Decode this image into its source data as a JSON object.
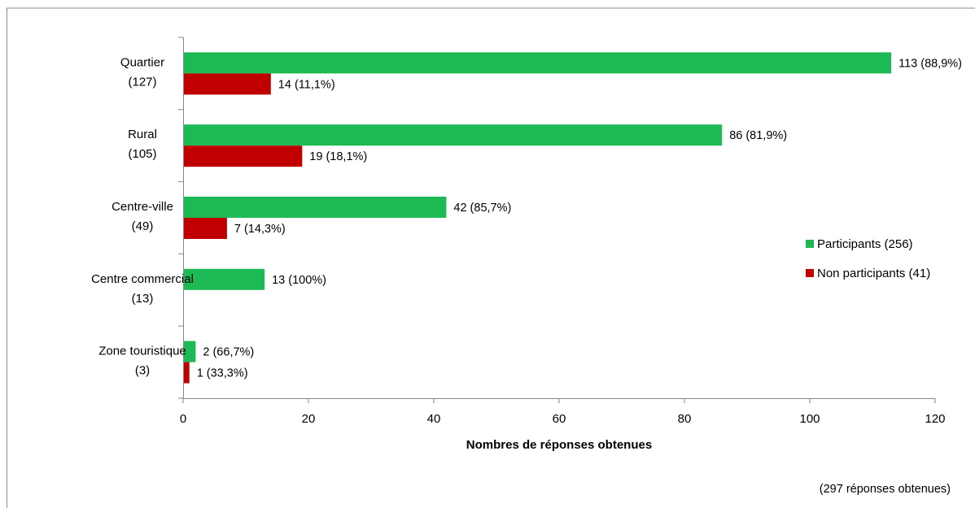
{
  "chart_data": {
    "type": "bar",
    "orientation": "horizontal",
    "categories": [
      "Quartier\n(127)",
      "Rural\n(105)",
      "Centre-ville\n(49)",
      "Centre commercial\n(13)",
      "Zone touristique\n(3)"
    ],
    "series": [
      {
        "name": "Participants (256)",
        "color": "#1db954",
        "values": [
          113,
          86,
          42,
          13,
          2
        ],
        "labels": [
          "113 (88,9%)",
          "86 (81,9%)",
          "42 (85,7%)",
          "13 (100%)",
          "2 (66,7%)"
        ]
      },
      {
        "name": "Non participants (41)",
        "color": "#c00000",
        "values": [
          14,
          19,
          7,
          0,
          1
        ],
        "labels": [
          "14 (11,1%)",
          "19 (18,1%)",
          "7 (14,3%)",
          "",
          "1 (33,3%)"
        ]
      }
    ],
    "xlabel": "Nombres de réponses obtenues",
    "ylabel": "",
    "xlim": [
      0,
      120
    ],
    "xticks": [
      0,
      20,
      40,
      60,
      80,
      100,
      120
    ],
    "grid": false,
    "legend_position": "right",
    "note": "(297 réponses obtenues)"
  }
}
